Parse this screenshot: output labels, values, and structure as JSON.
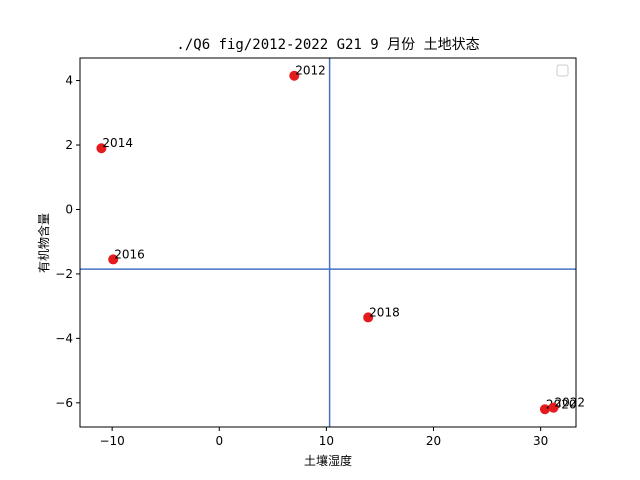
{
  "chart_data": {
    "type": "scatter",
    "title": "./Q6 fig/2012-2022 G21 9 月份 土地状态",
    "xlabel": "土壤湿度",
    "ylabel": "有机物含量",
    "xlim": [
      -13,
      33.3
    ],
    "ylim": [
      -6.75,
      4.7
    ],
    "xticks": [
      -10,
      0,
      10,
      20,
      30
    ],
    "yticks": [
      -6,
      -4,
      -2,
      0,
      2,
      4
    ],
    "xtick_labels": [
      "−10",
      "0",
      "10",
      "20",
      "30"
    ],
    "ytick_labels": [
      "−6",
      "−4",
      "−2",
      "0",
      "2",
      "4"
    ],
    "grid": false,
    "legend": {
      "placement": "upper-right",
      "entries": []
    },
    "point_color": "#e41a1c",
    "line_color": "#4472c4",
    "reference_lines": {
      "vertical_x": 10.3,
      "horizontal_y": -1.85
    },
    "points": [
      {
        "label": "2012",
        "x": 7.0,
        "y": 4.15
      },
      {
        "label": "2014",
        "x": -11.0,
        "y": 1.9
      },
      {
        "label": "2016",
        "x": -9.9,
        "y": -1.55
      },
      {
        "label": "2018",
        "x": 13.9,
        "y": -3.35
      },
      {
        "label": "2020",
        "x": 30.4,
        "y": -6.2
      },
      {
        "label": "2022",
        "x": 31.2,
        "y": -6.15
      }
    ]
  }
}
